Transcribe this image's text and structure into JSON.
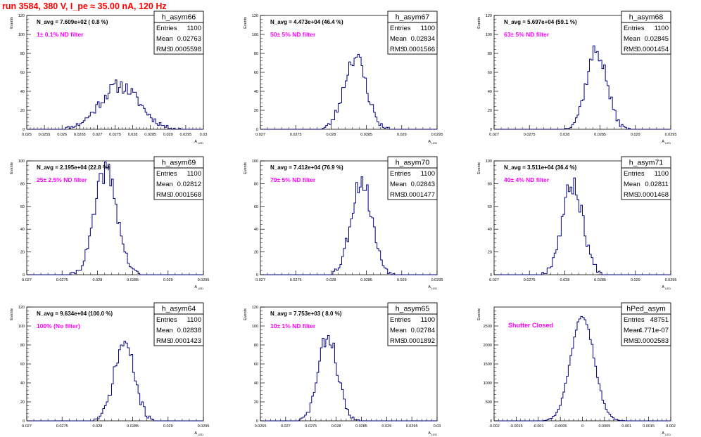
{
  "title": "run 3584,   380 V, I_pe ≈ 35.00 nA, 120 Hz",
  "colors": {
    "title": "#ff0000",
    "histogram": "#000080",
    "annotation": "#ff00ff",
    "axis": "#000000"
  },
  "chart_data": [
    {
      "type": "histogram",
      "name": "h_asym66",
      "stats": {
        "Entries": "1100",
        "Mean": "0.02763",
        "RMS": "0.0005598"
      },
      "annotations": [
        "N_avg = 7.609e+02 ( 0.8 %)",
        "1± 0.1% ND filter"
      ],
      "xlabel": "A_LED",
      "ylabel": "Events",
      "xlim": [
        0.025,
        0.03
      ],
      "ylim": [
        0,
        120
      ],
      "xticks": [
        "0.025",
        "0.0255",
        "0.026",
        "0.0265",
        "0.027",
        "0.0275",
        "0.028",
        "0.0285",
        "0.029",
        "0.0295",
        "0.03"
      ],
      "yticks": [
        "0",
        "20",
        "40",
        "60",
        "80",
        "100",
        "120"
      ],
      "mean": 0.02763,
      "rms": 0.0005598,
      "peak": 46,
      "entries": 1100,
      "seed": 11
    },
    {
      "type": "histogram",
      "name": "h_asym67",
      "stats": {
        "Entries": "1100",
        "Mean": "0.02834",
        "RMS": "0.0001566"
      },
      "annotations": [
        "N_avg = 4.473e+04 (46.4 %)",
        "50± 5% ND filter"
      ],
      "xlabel": "A_LED",
      "ylabel": "Events",
      "xlim": [
        0.027,
        0.0295
      ],
      "ylim": [
        0,
        120
      ],
      "xticks": [
        "0.027",
        "0.0275",
        "0.028",
        "0.0285",
        "0.029",
        "0.0295"
      ],
      "yticks": [
        "0",
        "20",
        "40",
        "60",
        "80",
        "100",
        "120"
      ],
      "mean": 0.02834,
      "rms": 0.0001566,
      "peak": 77,
      "entries": 1100,
      "seed": 23
    },
    {
      "type": "histogram",
      "name": "h_asym68",
      "stats": {
        "Entries": "1100",
        "Mean": "0.02845",
        "RMS": "0.0001454"
      },
      "annotations": [
        "N_avg = 5.697e+04 (59.1 %)",
        "63± 5% ND filter"
      ],
      "xlabel": "A_LED",
      "ylabel": "Events",
      "xlim": [
        0.027,
        0.0295
      ],
      "ylim": [
        0,
        120
      ],
      "xticks": [
        "0.027",
        "0.0275",
        "0.028",
        "0.0285",
        "0.029",
        "0.0295"
      ],
      "yticks": [
        "0",
        "20",
        "40",
        "60",
        "80",
        "100",
        "120"
      ],
      "mean": 0.02845,
      "rms": 0.0001454,
      "peak": 83,
      "entries": 1100,
      "seed": 37
    },
    {
      "type": "histogram",
      "name": "h_asym69",
      "stats": {
        "Entries": "1100",
        "Mean": "0.02812",
        "RMS": "0.0001568"
      },
      "annotations": [
        "N_avg = 2.195e+04 (22.8 %)",
        "25± 2.5% ND filter"
      ],
      "xlabel": "A_LED",
      "ylabel": "Events",
      "xlim": [
        0.027,
        0.0295
      ],
      "ylim": [
        0,
        100
      ],
      "xticks": [
        "0.027",
        "0.0275",
        "0.028",
        "0.0285",
        "0.029",
        "0.0295"
      ],
      "yticks": [
        "0",
        "20",
        "40",
        "60",
        "80",
        "100"
      ],
      "mean": 0.02812,
      "rms": 0.0001568,
      "peak": 92,
      "entries": 1100,
      "seed": 41
    },
    {
      "type": "histogram",
      "name": "h_asym70",
      "stats": {
        "Entries": "1100",
        "Mean": "0.02843",
        "RMS": "0.0001477"
      },
      "annotations": [
        "N_avg = 7.412e+04 (76.9 %)",
        "79± 5% ND filter"
      ],
      "xlabel": "A_LED",
      "ylabel": "Events",
      "xlim": [
        0.027,
        0.0295
      ],
      "ylim": [
        0,
        100
      ],
      "xticks": [
        "0.027",
        "0.0275",
        "0.028",
        "0.0285",
        "0.029",
        "0.0295"
      ],
      "yticks": [
        "0",
        "20",
        "40",
        "60",
        "80",
        "100"
      ],
      "mean": 0.02843,
      "rms": 0.0001477,
      "peak": 83,
      "entries": 1100,
      "seed": 53
    },
    {
      "type": "histogram",
      "name": "h_asym71",
      "stats": {
        "Entries": "1100",
        "Mean": "0.02811",
        "RMS": "0.0001468"
      },
      "annotations": [
        "N_avg = 3.511e+04 (36.4 %)",
        "40± 4% ND filter"
      ],
      "xlabel": "A_LED",
      "ylabel": "Events",
      "xlim": [
        0.027,
        0.0295
      ],
      "ylim": [
        0,
        100
      ],
      "xticks": [
        "0.027",
        "0.0275",
        "0.028",
        "0.0285",
        "0.029",
        "0.0295"
      ],
      "yticks": [
        "0",
        "20",
        "40",
        "60",
        "80",
        "100"
      ],
      "mean": 0.02811,
      "rms": 0.0001468,
      "peak": 80,
      "entries": 1100,
      "seed": 67
    },
    {
      "type": "histogram",
      "name": "h_asym64",
      "stats": {
        "Entries": "1100",
        "Mean": "0.02838",
        "RMS": "0.0001423"
      },
      "annotations": [
        "N_avg = 9.634e+04 (100.0 %)",
        "100% (No filter)"
      ],
      "xlabel": "A_LED",
      "ylabel": "Events",
      "xlim": [
        0.027,
        0.0295
      ],
      "ylim": [
        0,
        120
      ],
      "xticks": [
        "0.027",
        "0.0275",
        "0.028",
        "0.0285",
        "0.029",
        "0.0295"
      ],
      "yticks": [
        "0",
        "20",
        "40",
        "60",
        "80",
        "100",
        "120"
      ],
      "mean": 0.02838,
      "rms": 0.0001423,
      "peak": 82,
      "entries": 1100,
      "seed": 71
    },
    {
      "type": "histogram",
      "name": "h_asym65",
      "stats": {
        "Entries": "1100",
        "Mean": "0.02784",
        "RMS": "0.0001892"
      },
      "annotations": [
        "N_avg = 7.753e+03 ( 8.0 %)",
        "10± 1% ND filter"
      ],
      "xlabel": "A_LED",
      "ylabel": "Events",
      "xlim": [
        0.0265,
        0.03
      ],
      "ylim": [
        0,
        120
      ],
      "xticks": [
        "0.0265",
        "0.027",
        "0.0275",
        "0.028",
        "0.0285",
        "0.029",
        "0.0295",
        "0.03"
      ],
      "yticks": [
        "0",
        "20",
        "40",
        "60",
        "80",
        "100",
        "120"
      ],
      "mean": 0.02784,
      "rms": 0.0001892,
      "peak": 89,
      "entries": 1100,
      "seed": 83
    },
    {
      "type": "histogram",
      "name": "hPed_asym",
      "stats": {
        "Entries": "48751",
        "Mean": "-4.771e-07",
        "RMS": "0.0002583"
      },
      "annotations": [
        "Shutter Closed"
      ],
      "xlabel": "A_LED",
      "ylabel": "Events",
      "xlim": [
        -0.002,
        0.002
      ],
      "ylim": [
        0,
        3000
      ],
      "xticks": [
        "-0.002",
        "-0.0015",
        "-0.001",
        "-0.0005",
        "0",
        "0.0005",
        "0.001",
        "0.0015",
        "0.002"
      ],
      "yticks": [
        "0",
        "500",
        "1000",
        "1500",
        "2000",
        "2500"
      ],
      "mean": -4.771e-07,
      "rms": 0.0002583,
      "peak": 2830,
      "entries": 48751,
      "seed": 97
    }
  ]
}
